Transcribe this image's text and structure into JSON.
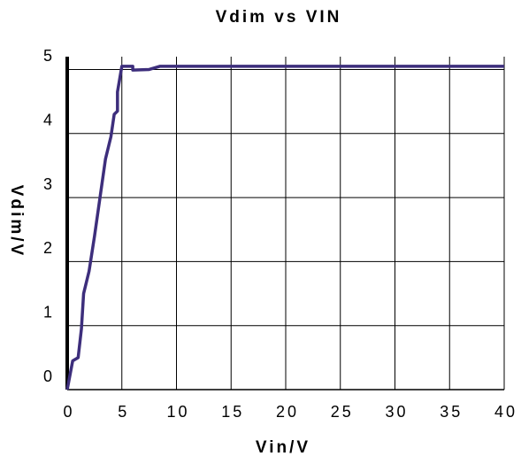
{
  "chart_data": {
    "type": "line",
    "title": "Vdim vs VIN",
    "x_label": "Vin/V",
    "y_label": "Vdim/V",
    "x": [
      0,
      0.5,
      1,
      1.3,
      1.5,
      2,
      2.5,
      3,
      3.5,
      4,
      4.3,
      4.6,
      4.6,
      5,
      6,
      6,
      7.5,
      8.5,
      40
    ],
    "series": [
      {
        "name": "Vdim",
        "color": "#3d2e7c",
        "values": [
          0,
          0.45,
          0.5,
          0.95,
          1.5,
          1.85,
          2.4,
          3.0,
          3.6,
          3.95,
          4.3,
          4.35,
          4.65,
          5.05,
          5.05,
          4.99,
          5.0,
          5.05,
          5.05
        ]
      }
    ],
    "xlim": [
      0,
      40
    ],
    "xticks": [
      0,
      5,
      10,
      15,
      20,
      25,
      30,
      35,
      40
    ],
    "ylim": [
      0,
      5.2
    ],
    "yticks": [
      0,
      1,
      2,
      3,
      4,
      5
    ],
    "grid": true
  }
}
